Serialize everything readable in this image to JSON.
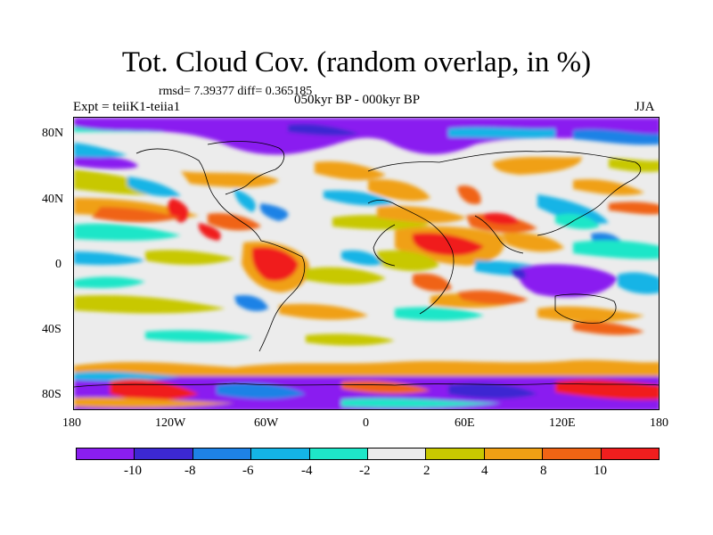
{
  "title": "Tot. Cloud Cov. (random overlap, in %)",
  "stats": "rmsd= 7.39377 diff= 0.365185",
  "expt": "Expt = teiiK1-teiia1",
  "period": "050kyr BP - 000kyr BP",
  "season": "JJA",
  "lat_ticks": [
    "80N",
    "40N",
    "0",
    "40S",
    "80S"
  ],
  "lon_ticks": [
    "180",
    "120W",
    "60W",
    "0",
    "60E",
    "120E",
    "180"
  ],
  "colorbar": {
    "labels": [
      "-10",
      "-8",
      "-6",
      "-4",
      "-2",
      "2",
      "4",
      "8",
      "10"
    ],
    "colors": [
      "#8a1ef0",
      "#3c28d2",
      "#1e82e6",
      "#14b4e6",
      "#1ee6c8",
      "#ececec",
      "#c8c800",
      "#f0a014",
      "#f06414",
      "#f01e1e"
    ]
  }
}
